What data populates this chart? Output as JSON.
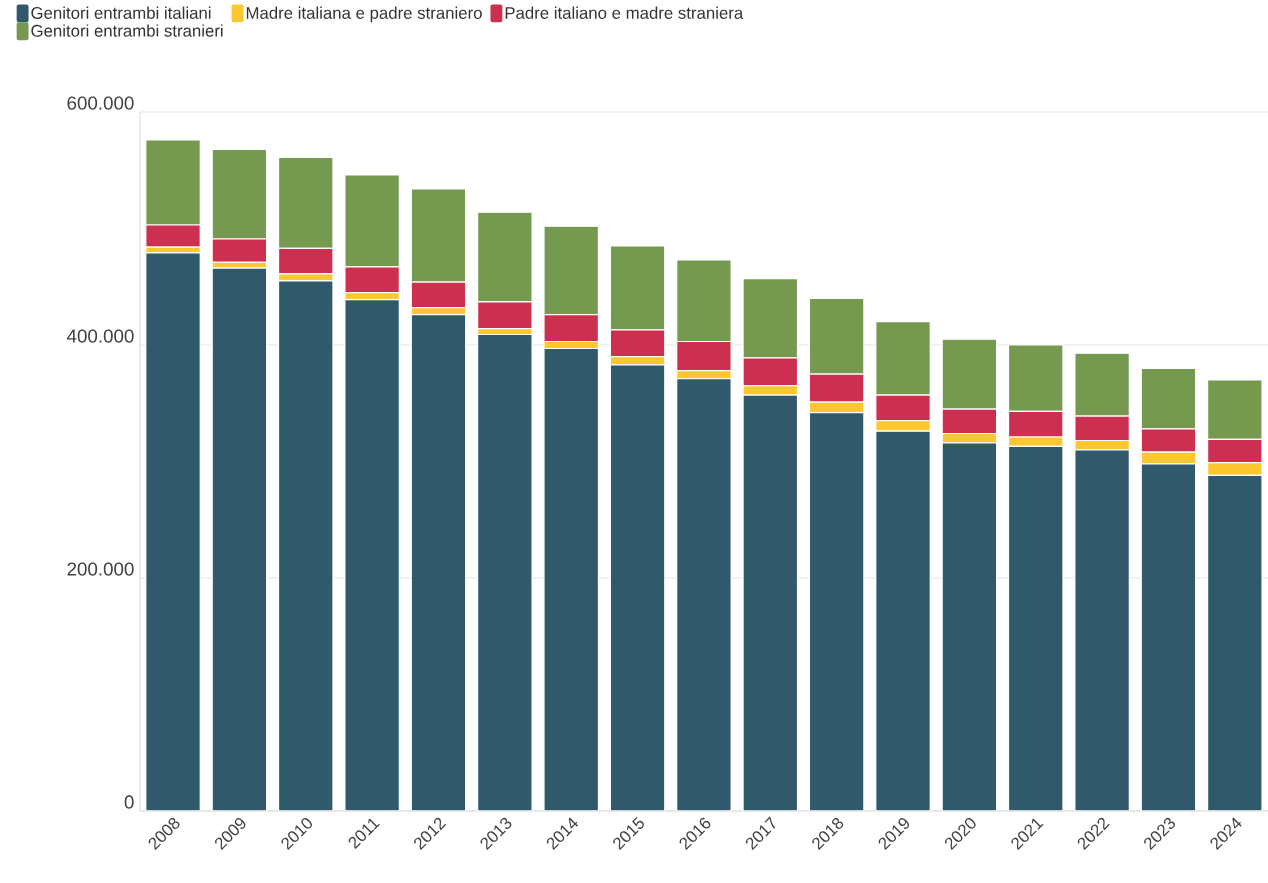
{
  "chart_data": {
    "type": "bar",
    "stacked": true,
    "categories": [
      "2008",
      "2009",
      "2010",
      "2011",
      "2012",
      "2013",
      "2014",
      "2015",
      "2016",
      "2017",
      "2018",
      "2019",
      "2020",
      "2021",
      "2022",
      "2023",
      "2024"
    ],
    "series": [
      {
        "name": "Genitori entrambi italiani",
        "color": "#31596c",
        "values": [
          479000,
          466000,
          455000,
          439000,
          426000,
          409000,
          397000,
          383000,
          371000,
          357000,
          342000,
          326000,
          316000,
          313000,
          310000,
          298000,
          288000
        ]
      },
      {
        "name": "Madre italiana e padre straniero",
        "color": "#fdc731",
        "values": [
          5000,
          5000,
          6000,
          6000,
          6000,
          5000,
          6000,
          7000,
          7000,
          8000,
          9000,
          9000,
          8000,
          8000,
          8000,
          10000,
          11000
        ]
      },
      {
        "name": "Padre italiano e madre straniera",
        "color": "#cd2f50",
        "values": [
          19000,
          20000,
          22000,
          22000,
          22000,
          23000,
          23000,
          23000,
          25000,
          24000,
          24000,
          22000,
          21000,
          22000,
          21000,
          20000,
          20000
        ]
      },
      {
        "name": "Genitori entrambi stranieri",
        "color": "#74994f",
        "values": [
          73000,
          77000,
          78000,
          79000,
          80000,
          77000,
          76000,
          72000,
          70000,
          68000,
          65000,
          63000,
          60000,
          57000,
          54000,
          52000,
          51000
        ]
      }
    ],
    "ylim": [
      0,
      600000
    ],
    "yticks": [
      0,
      {
        "value": 200000,
        "label": "200.000"
      },
      {
        "value": 400000,
        "label": "400.000"
      },
      {
        "value": 600000,
        "label": "600.000"
      }
    ],
    "grid": "y",
    "legend": "top left"
  }
}
